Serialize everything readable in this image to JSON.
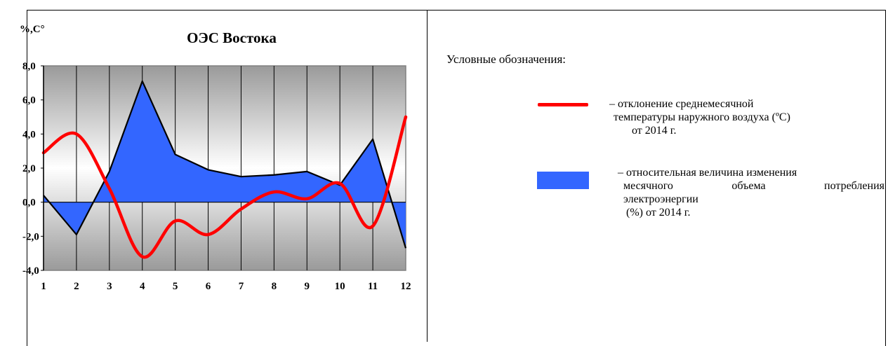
{
  "chart_data": {
    "type": "line+area",
    "title": "ОЭС Востока",
    "ylabel": "%,С°",
    "categories": [
      "1",
      "2",
      "3",
      "4",
      "5",
      "6",
      "7",
      "8",
      "9",
      "10",
      "11",
      "12"
    ],
    "yticks": [
      "8,0",
      "6,0",
      "4,0",
      "2,0",
      "0,0",
      "-2,0",
      "-4,0"
    ],
    "ylim": [
      -4,
      8
    ],
    "grid": true,
    "series": [
      {
        "name": "относительная величина изменения месячного объема потребления электроэнергии (%) от 2014 г.",
        "kind": "area",
        "color": "#3366ff",
        "values": [
          0.4,
          -1.9,
          1.8,
          7.1,
          2.8,
          1.9,
          1.5,
          1.6,
          1.8,
          1.0,
          3.7,
          -2.7
        ]
      },
      {
        "name": "отклонение среднемесячной температуры наружного воздуха (ºС) от 2014 г.",
        "kind": "line",
        "color": "#ff0000",
        "values": [
          2.9,
          4.0,
          0.8,
          -3.2,
          -1.1,
          -1.9,
          -0.4,
          0.6,
          0.2,
          1.1,
          -1.4,
          5.0
        ]
      }
    ]
  },
  "legend": {
    "title": "Условные обозначения:",
    "temp": {
      "line1": "– отклонение среднемесячной",
      "line2": "температуры наружного воздуха (ºС)",
      "line3": "от 2014 г."
    },
    "power": {
      "line1": "– относительная величина изменения",
      "line2a": "месячного",
      "line2b": "объема",
      "line2c": "потребления",
      "line3": "электроэнергии",
      "line4": "(%) от 2014 г."
    }
  }
}
